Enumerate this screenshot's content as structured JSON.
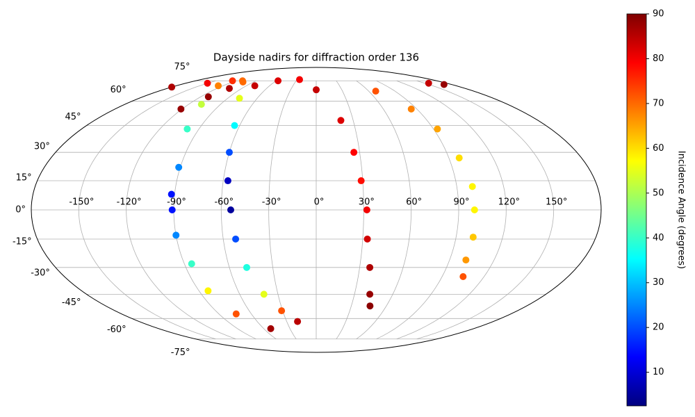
{
  "chart_data": {
    "type": "scatter",
    "projection": "mollweide",
    "title": "Dayside nadirs for diffraction order 136",
    "grid": true,
    "xlim": [
      -180,
      180
    ],
    "ylim": [
      -90,
      90
    ],
    "xticks": [
      {
        "value": -150,
        "label": "-150°"
      },
      {
        "value": -120,
        "label": "-120°"
      },
      {
        "value": -90,
        "label": "-90°"
      },
      {
        "value": -60,
        "label": "-60°"
      },
      {
        "value": -30,
        "label": "-30°"
      },
      {
        "value": 0,
        "label": "0°"
      },
      {
        "value": 30,
        "label": "30°"
      },
      {
        "value": 60,
        "label": "60°"
      },
      {
        "value": 90,
        "label": "90°"
      },
      {
        "value": 120,
        "label": "120°"
      },
      {
        "value": 150,
        "label": "150°"
      }
    ],
    "yticks": [
      {
        "value": -75,
        "label": "-75°"
      },
      {
        "value": -60,
        "label": "-60°"
      },
      {
        "value": -45,
        "label": "-45°"
      },
      {
        "value": -30,
        "label": "-30°"
      },
      {
        "value": -15,
        "label": "-15°"
      },
      {
        "value": 0,
        "label": "0°"
      },
      {
        "value": 15,
        "label": "15°"
      },
      {
        "value": 30,
        "label": "30°"
      },
      {
        "value": 45,
        "label": "45°"
      },
      {
        "value": 60,
        "label": "60°"
      },
      {
        "value": 75,
        "label": "75°"
      }
    ],
    "colormap": "jet",
    "colorbar": {
      "label": "Incidence Angle (degrees)",
      "lim": [
        2.5,
        90
      ],
      "ticks": [
        10,
        20,
        30,
        40,
        50,
        60,
        70,
        80,
        90
      ]
    },
    "series": [
      {
        "x": [
          -180,
          -150,
          -125,
          -110
        ],
        "y": [
          70,
          73,
          75,
          75
        ],
        "values": [
          86,
          80,
          75,
          70
        ]
      },
      {
        "x": [
          -105,
          -78,
          -64,
          -60,
          -57,
          -54,
          -52,
          -48,
          -41,
          -31,
          -19
        ],
        "y": [
          74,
          62,
          45,
          30,
          15,
          0,
          -15,
          -30,
          -45,
          -55,
          -62
        ],
        "values": [
          70,
          55,
          35,
          20,
          8,
          5,
          20,
          38,
          55,
          72,
          85
        ]
      },
      {
        "x": [
          -126,
          -108,
          -99,
          -91,
          -92,
          -91,
          -90,
          -85,
          -83,
          -74,
          -52
        ],
        "y": [
          71,
          58,
          43,
          22,
          8,
          0,
          -13,
          -28,
          -43,
          -57,
          -67
        ],
        "values": [
          68,
          52,
          40,
          25,
          15,
          15,
          25,
          40,
          58,
          72,
          87
        ]
      },
      {
        "x": [
          -121,
          -112,
          -105,
          -79,
          -57,
          -26,
          0,
          20,
          26,
          29,
          32,
          33,
          37,
          42,
          46
        ],
        "y": [
          55,
          63,
          69,
          71,
          75,
          76,
          68,
          48,
          30,
          15,
          0,
          -15,
          -30,
          -45,
          -52
        ],
        "values": [
          88,
          88,
          86,
          84,
          82,
          80,
          84,
          82,
          79,
          78,
          80,
          83,
          86,
          88,
          89
        ]
      },
      {
        "x": [
          68,
          85,
          93,
          97,
          100,
          100,
          101,
          101,
          105
        ],
        "y": [
          67,
          55,
          43,
          27,
          12,
          0,
          -14,
          -26,
          -35
        ],
        "values": [
          72,
          68,
          65,
          60,
          58,
          58,
          62,
          66,
          72
        ]
      },
      {
        "x": [
          155,
          170
        ],
        "y": [
          73,
          72
        ],
        "values": [
          84,
          88
        ]
      }
    ]
  }
}
